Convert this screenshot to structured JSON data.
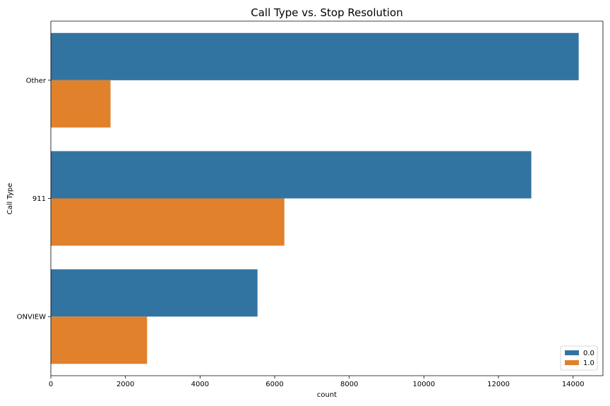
{
  "chart_data": {
    "type": "bar",
    "orientation": "horizontal",
    "title": "Call Type vs. Stop Resolution",
    "xlabel": "count",
    "ylabel": "Call Type",
    "categories": [
      "Other",
      "911",
      "ONVIEW"
    ],
    "series": [
      {
        "name": "0.0",
        "color": "#3274a1",
        "values": [
          14150,
          12880,
          5540
        ]
      },
      {
        "name": "1.0",
        "color": "#e1812c",
        "values": [
          1600,
          6260,
          2580
        ]
      }
    ],
    "xlim": [
      0,
      14800
    ],
    "xticks": [
      0,
      2000,
      4000,
      6000,
      8000,
      10000,
      12000,
      14000
    ],
    "grid": false,
    "legend_position": "bottom-right"
  }
}
